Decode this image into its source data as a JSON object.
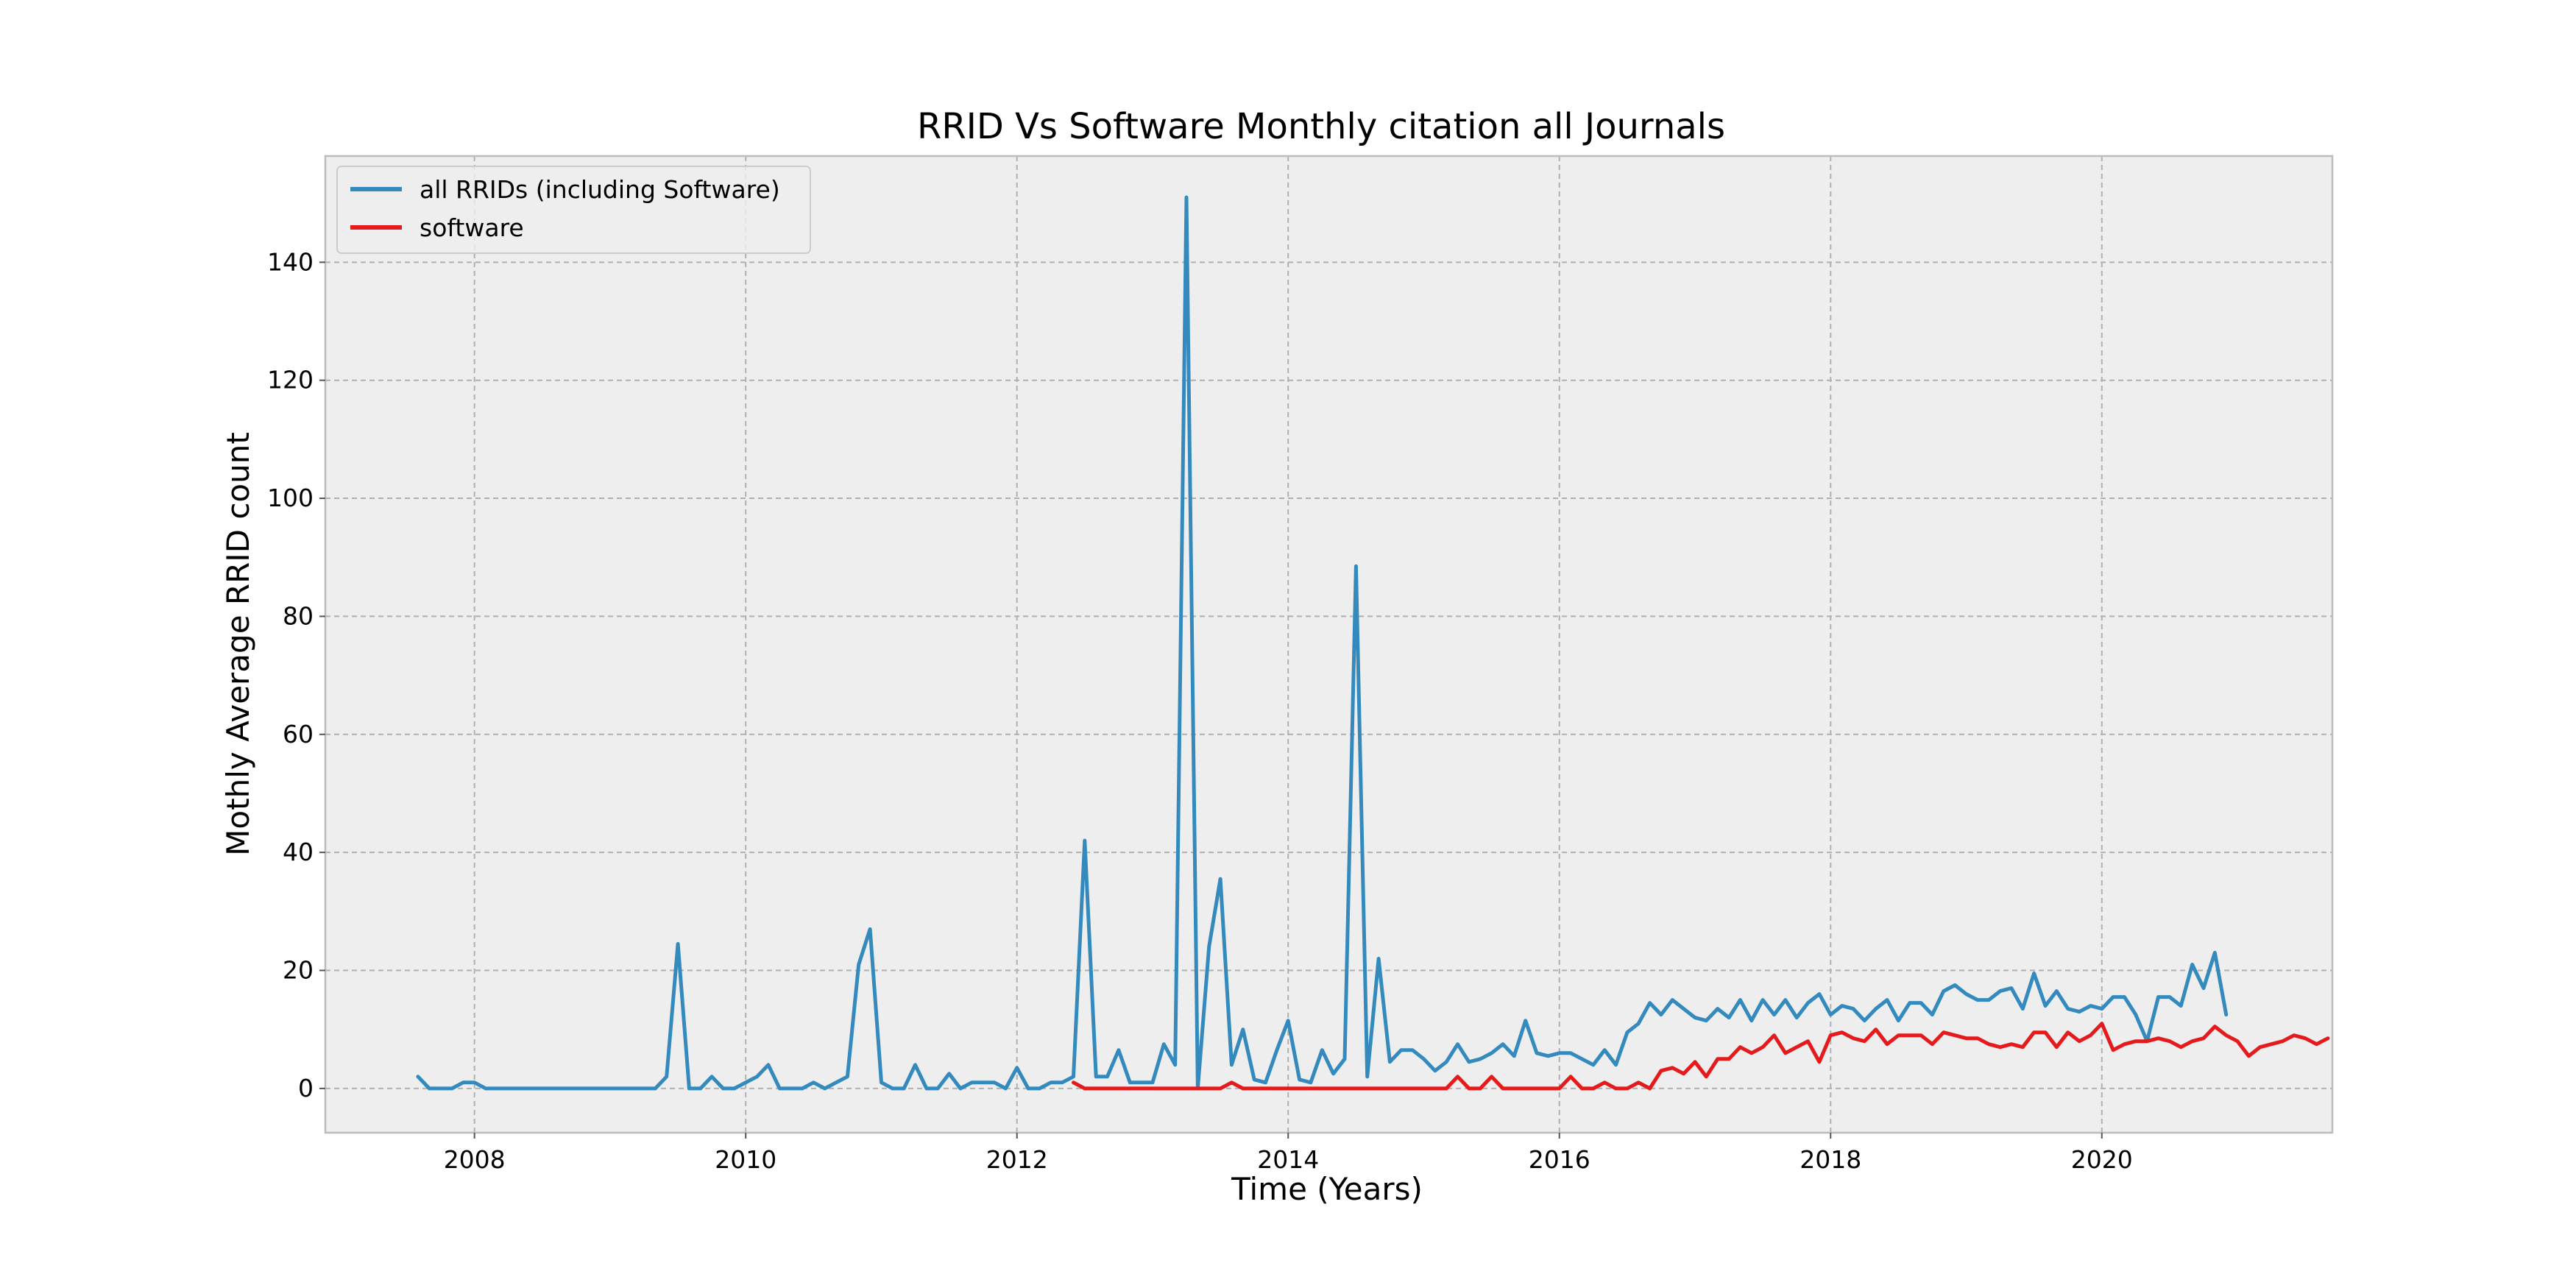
{
  "chart_data": {
    "type": "line",
    "title": "RRID Vs Software Monthly citation all Journals",
    "xlabel": "Time (Years)",
    "ylabel": "Mothly Average RRID count",
    "xlim": [
      2006.9,
      2021.7
    ],
    "ylim": [
      -7.5,
      158
    ],
    "x_ticks": [
      2008,
      2010,
      2012,
      2014,
      2016,
      2018,
      2020
    ],
    "x_tick_labels": [
      "2008",
      "2010",
      "2012",
      "2014",
      "2016",
      "2018",
      "2020"
    ],
    "y_ticks": [
      0,
      20,
      40,
      60,
      80,
      100,
      120,
      140
    ],
    "y_tick_labels": [
      "0",
      "20",
      "40",
      "60",
      "80",
      "100",
      "120",
      "140"
    ],
    "grid": true,
    "legend_position": "upper-left",
    "background_color": "#eeeeee",
    "series": [
      {
        "name": "all RRIDs (including Software)",
        "color": "#348abd",
        "start": "2007-08",
        "values": [
          2,
          0,
          0,
          0,
          1,
          1,
          0,
          0,
          0,
          0,
          0,
          0,
          0,
          0,
          0,
          0,
          0,
          0,
          0,
          0,
          0,
          0,
          2,
          24.5,
          0,
          0,
          2,
          0,
          0,
          1,
          2,
          4,
          0,
          0,
          0,
          1,
          0,
          1,
          2,
          21,
          27,
          1,
          0,
          0,
          4,
          0,
          0,
          2.5,
          0,
          1,
          1,
          1,
          0,
          3.5,
          0,
          0,
          1,
          1,
          2,
          42,
          2,
          2,
          6.5,
          1,
          1,
          1,
          7.5,
          4,
          151,
          0,
          24,
          35.5,
          4,
          10,
          1.5,
          1,
          6.5,
          11.5,
          1.5,
          1,
          6.5,
          2.5,
          5,
          88.5,
          2,
          22,
          4.5,
          6.5,
          6.5,
          5,
          3,
          4.5,
          7.5,
          4.5,
          5,
          6,
          7.5,
          5.5,
          11.5,
          6,
          5.5,
          6,
          6,
          5,
          4,
          6.5,
          4,
          9.5,
          11,
          14.5,
          12.5,
          15,
          13.5,
          12,
          11.5,
          13.5,
          12,
          15,
          11.5,
          15,
          12.5,
          15,
          12,
          14.5,
          16,
          12.5,
          14,
          13.5,
          11.5,
          13.5,
          15,
          11.5,
          14.5,
          14.5,
          12.5,
          16.5,
          17.5,
          16,
          15,
          15,
          16.5,
          17,
          13.5,
          19.5,
          14,
          16.5,
          13.5,
          13,
          14,
          13.5,
          15.5,
          15.5,
          12.5,
          8,
          15.5,
          15.5,
          14,
          21,
          17,
          23,
          12.5
        ]
      },
      {
        "name": "software",
        "color": "#e41a1c",
        "start": "2012-06",
        "values": [
          1,
          0,
          0,
          0,
          0,
          0,
          0,
          0,
          0,
          0,
          0,
          0,
          0,
          0,
          1,
          0,
          0,
          0,
          0,
          0,
          0,
          0,
          0,
          0,
          0,
          0,
          0,
          0,
          0,
          0,
          0,
          0,
          0,
          0,
          2,
          0,
          0,
          2,
          0,
          0,
          0,
          0,
          0,
          0,
          2,
          0,
          0,
          1,
          0,
          0,
          1,
          0,
          3,
          3.5,
          2.5,
          4.5,
          2,
          5,
          5,
          7,
          6,
          7,
          9,
          6,
          7,
          8,
          4.5,
          9,
          9.5,
          8.5,
          8,
          10,
          7.5,
          9,
          9,
          9,
          7.5,
          9.5,
          9,
          8.5,
          8.5,
          7.5,
          7,
          7.5,
          7,
          9.5,
          9.5,
          7,
          9.5,
          8,
          9,
          11,
          6.5,
          7.5,
          8,
          8,
          8.5,
          8,
          7,
          8,
          8.5,
          10.5,
          9,
          8,
          5.5,
          7,
          7.5,
          8,
          9,
          8.5,
          7.5,
          8.5
        ]
      }
    ]
  }
}
